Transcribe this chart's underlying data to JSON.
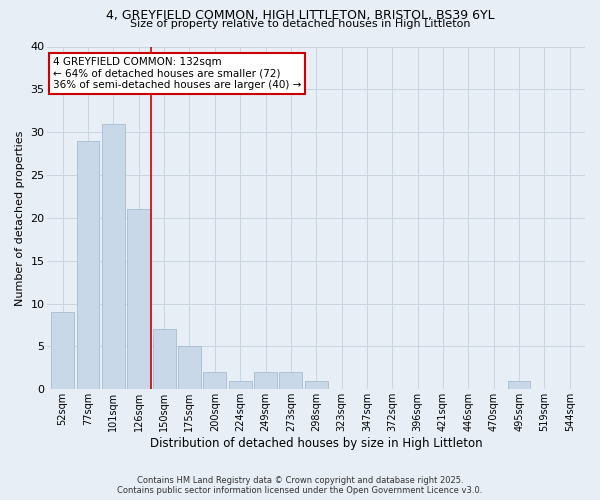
{
  "title1": "4, GREYFIELD COMMON, HIGH LITTLETON, BRISTOL, BS39 6YL",
  "title2": "Size of property relative to detached houses in High Littleton",
  "xlabel": "Distribution of detached houses by size in High Littleton",
  "ylabel": "Number of detached properties",
  "footnote1": "Contains HM Land Registry data © Crown copyright and database right 2025.",
  "footnote2": "Contains public sector information licensed under the Open Government Licence v3.0.",
  "bar_labels": [
    "52sqm",
    "77sqm",
    "101sqm",
    "126sqm",
    "150sqm",
    "175sqm",
    "200sqm",
    "224sqm",
    "249sqm",
    "273sqm",
    "298sqm",
    "323sqm",
    "347sqm",
    "372sqm",
    "396sqm",
    "421sqm",
    "446sqm",
    "470sqm",
    "495sqm",
    "519sqm",
    "544sqm"
  ],
  "bar_values": [
    9,
    29,
    31,
    21,
    7,
    5,
    2,
    1,
    2,
    2,
    1,
    0,
    0,
    0,
    0,
    0,
    0,
    0,
    1,
    0,
    0
  ],
  "bar_color": "#c8d8e8",
  "bar_edgecolor": "#a8bccf",
  "grid_color": "#c8d4e0",
  "background_color": "#e8eef5",
  "vline_x": 3.5,
  "vline_color": "#cc0000",
  "annotation_text": "4 GREYFIELD COMMON: 132sqm\n← 64% of detached houses are smaller (72)\n36% of semi-detached houses are larger (40) →",
  "annotation_box_facecolor": "#ffffff",
  "annotation_box_edgecolor": "#cc0000",
  "ylim": [
    0,
    40
  ],
  "yticks": [
    0,
    5,
    10,
    15,
    20,
    25,
    30,
    35,
    40
  ]
}
